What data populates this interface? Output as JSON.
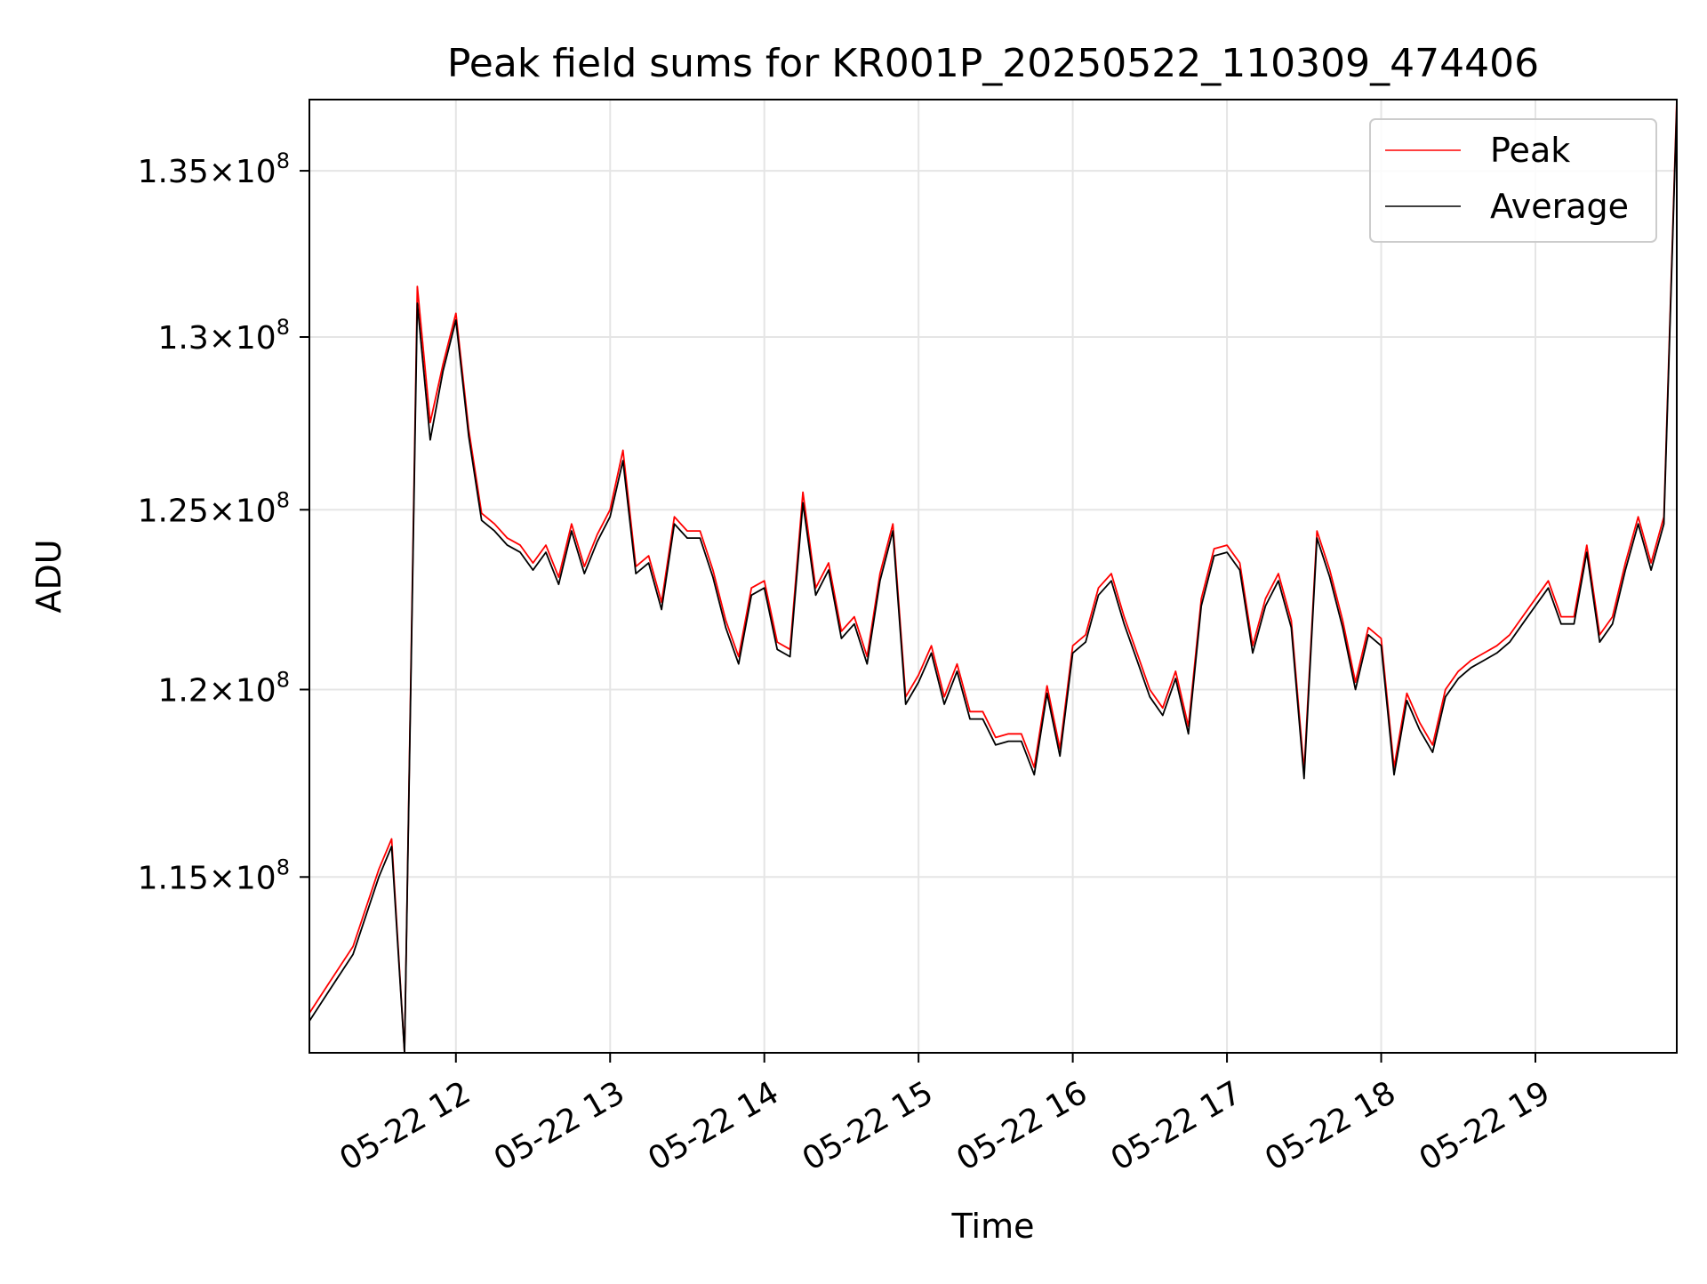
{
  "chart_data": {
    "type": "line",
    "title": "Peak field sums for KR001P_20250522_110309_474406",
    "xlabel": "Time",
    "ylabel": "ADU",
    "xlim": [
      "2025-05-22 11:03",
      "2025-05-22 19:55"
    ],
    "ylim": [
      110500000,
      137200000
    ],
    "y_scale": "log",
    "grid": true,
    "legend_position": "top-right",
    "x_ticks": [
      {
        "label": "05-22 12",
        "value": "2025-05-22 12:00"
      },
      {
        "label": "05-22 13",
        "value": "2025-05-22 13:00"
      },
      {
        "label": "05-22 14",
        "value": "2025-05-22 14:00"
      },
      {
        "label": "05-22 15",
        "value": "2025-05-22 15:00"
      },
      {
        "label": "05-22 16",
        "value": "2025-05-22 16:00"
      },
      {
        "label": "05-22 17",
        "value": "2025-05-22 17:00"
      },
      {
        "label": "05-22 18",
        "value": "2025-05-22 18:00"
      },
      {
        "label": "05-22 19",
        "value": "2025-05-22 19:00"
      }
    ],
    "y_ticks": [
      {
        "mantissa": "1.15",
        "exponent": "8",
        "value": 115000000
      },
      {
        "mantissa": "1.2",
        "exponent": "8",
        "value": 120000000
      },
      {
        "mantissa": "1.25",
        "exponent": "8",
        "value": 125000000
      },
      {
        "mantissa": "1.3",
        "exponent": "8",
        "value": 130000000
      },
      {
        "mantissa": "1.35",
        "exponent": "8",
        "value": 135000000
      }
    ],
    "times": [
      "11:03",
      "11:10",
      "11:20",
      "11:30",
      "11:35",
      "11:40",
      "11:45",
      "11:50",
      "11:55",
      "12:00",
      "12:05",
      "12:10",
      "12:15",
      "12:20",
      "12:25",
      "12:30",
      "12:35",
      "12:40",
      "12:45",
      "12:50",
      "12:55",
      "13:00",
      "13:05",
      "13:10",
      "13:15",
      "13:20",
      "13:25",
      "13:30",
      "13:35",
      "13:40",
      "13:45",
      "13:50",
      "13:55",
      "14:00",
      "14:05",
      "14:10",
      "14:15",
      "14:20",
      "14:25",
      "14:30",
      "14:35",
      "14:40",
      "14:45",
      "14:50",
      "14:55",
      "15:00",
      "15:05",
      "15:10",
      "15:15",
      "15:20",
      "15:25",
      "15:30",
      "15:35",
      "15:40",
      "15:45",
      "15:50",
      "15:55",
      "16:00",
      "16:05",
      "16:10",
      "16:15",
      "16:20",
      "16:25",
      "16:30",
      "16:35",
      "16:40",
      "16:45",
      "16:50",
      "16:55",
      "17:00",
      "17:05",
      "17:10",
      "17:15",
      "17:20",
      "17:25",
      "17:30",
      "17:35",
      "17:40",
      "17:45",
      "17:50",
      "17:55",
      "18:00",
      "18:05",
      "18:10",
      "18:15",
      "18:20",
      "18:25",
      "18:30",
      "18:35",
      "18:40",
      "18:45",
      "18:50",
      "18:55",
      "19:00",
      "19:05",
      "19:10",
      "19:15",
      "19:20",
      "19:25",
      "19:30",
      "19:35",
      "19:40",
      "19:45",
      "19:50",
      "19:55"
    ],
    "series": [
      {
        "name": "Peak",
        "color": "#ff0000",
        "values": [
          111500000,
          112200000,
          113200000,
          115200000,
          116000000,
          110500000,
          131500000,
          127500000,
          129200000,
          130700000,
          127300000,
          124900000,
          124600000,
          124200000,
          124000000,
          123500000,
          124000000,
          123100000,
          124600000,
          123400000,
          124300000,
          125000000,
          126700000,
          123400000,
          123700000,
          122400000,
          124800000,
          124400000,
          124400000,
          123300000,
          121900000,
          120900000,
          122800000,
          123000000,
          121300000,
          121100000,
          125500000,
          122800000,
          123500000,
          121600000,
          122000000,
          120900000,
          123200000,
          124600000,
          119800000,
          120400000,
          121200000,
          119800000,
          120700000,
          119400000,
          119400000,
          118700000,
          118800000,
          118800000,
          117900000,
          120100000,
          118400000,
          121200000,
          121500000,
          122800000,
          123200000,
          122000000,
          121000000,
          120000000,
          119500000,
          120500000,
          119000000,
          122500000,
          123900000,
          124000000,
          123500000,
          121200000,
          122500000,
          123200000,
          121900000,
          117800000,
          124400000,
          123300000,
          121900000,
          120200000,
          121700000,
          121400000,
          117900000,
          119900000,
          119100000,
          118500000,
          120000000,
          120500000,
          120800000,
          121000000,
          121200000,
          121500000,
          122000000,
          122500000,
          123000000,
          122000000,
          122000000,
          124000000,
          121500000,
          122000000,
          123500000,
          124800000,
          123500000,
          124800000,
          137200000
        ]
      },
      {
        "name": "Average",
        "color": "#000000",
        "values": [
          111300000,
          112000000,
          113000000,
          115000000,
          115800000,
          110500000,
          131000000,
          127000000,
          129000000,
          130500000,
          127100000,
          124700000,
          124400000,
          124000000,
          123800000,
          123300000,
          123800000,
          122900000,
          124400000,
          123200000,
          124100000,
          124800000,
          126400000,
          123200000,
          123500000,
          122200000,
          124600000,
          124200000,
          124200000,
          123100000,
          121700000,
          120700000,
          122600000,
          122800000,
          121100000,
          120900000,
          125200000,
          122600000,
          123300000,
          121400000,
          121800000,
          120700000,
          123000000,
          124400000,
          119600000,
          120200000,
          121000000,
          119600000,
          120500000,
          119200000,
          119200000,
          118500000,
          118600000,
          118600000,
          117700000,
          119900000,
          118200000,
          121000000,
          121300000,
          122600000,
          123000000,
          121800000,
          120800000,
          119800000,
          119300000,
          120300000,
          118800000,
          122300000,
          123700000,
          123800000,
          123300000,
          121000000,
          122300000,
          123000000,
          121700000,
          117600000,
          124200000,
          123100000,
          121700000,
          120000000,
          121500000,
          121200000,
          117700000,
          119700000,
          118900000,
          118300000,
          119800000,
          120300000,
          120600000,
          120800000,
          121000000,
          121300000,
          121800000,
          122300000,
          122800000,
          121800000,
          121800000,
          123800000,
          121300000,
          121800000,
          123300000,
          124600000,
          123300000,
          124600000,
          137000000
        ]
      }
    ]
  }
}
